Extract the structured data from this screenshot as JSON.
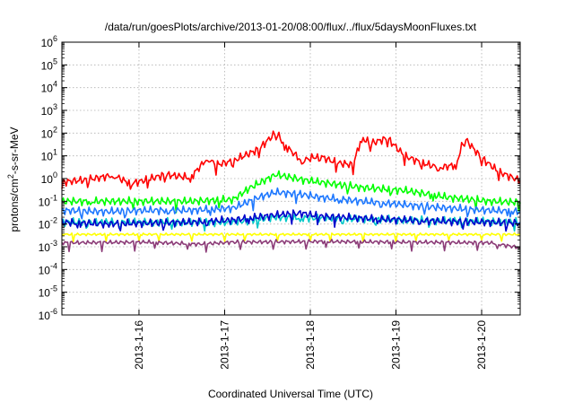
{
  "chart_data": {
    "type": "line",
    "title": "/data/run/goesPlots/archive/2013-01-20/08:00/flux/../flux/5daysMoonFluxes.txt",
    "xlabel": "Coordinated Universal Time (UTC)",
    "ylabel": {
      "prefix": "protons/cm",
      "sup": "2",
      "suffix": "-s-sr-MeV"
    },
    "xlim": [
      0,
      5.35
    ],
    "ylim": [
      1e-06,
      1000000.0
    ],
    "yscale": "log",
    "grid": true,
    "x_ticks": [
      {
        "x": 0.9,
        "label": "2013-1-16"
      },
      {
        "x": 1.9,
        "label": "2013-1-17"
      },
      {
        "x": 2.9,
        "label": "2013-1-18"
      },
      {
        "x": 3.9,
        "label": "2013-1-19"
      },
      {
        "x": 4.9,
        "label": "2013-1-20"
      }
    ],
    "y_ticks": [
      {
        "exp": "6"
      },
      {
        "exp": "5"
      },
      {
        "exp": "4"
      },
      {
        "exp": "3"
      },
      {
        "exp": "2"
      },
      {
        "exp": "1"
      },
      {
        "exp": "0"
      },
      {
        "exp": "-1"
      },
      {
        "exp": "-2"
      },
      {
        "exp": "-3"
      },
      {
        "exp": "-4"
      },
      {
        "exp": "-5"
      },
      {
        "exp": "-6"
      }
    ],
    "y_tick_base": "10",
    "series": [
      {
        "color": "#ff0000",
        "x": [
          0,
          0.3,
          0.6,
          0.8,
          1.0,
          1.2,
          1.5,
          1.7,
          1.8,
          2.0,
          2.3,
          2.5,
          2.6,
          2.8,
          3.0,
          3.2,
          3.4,
          3.5,
          3.6,
          3.8,
          4.0,
          4.2,
          4.4,
          4.6,
          4.7,
          4.9,
          5.1,
          5.35
        ],
        "y": [
          0.7,
          0.9,
          1.4,
          0.6,
          0.9,
          1.5,
          1.1,
          8,
          4,
          6,
          20,
          110,
          30,
          6,
          10,
          5,
          4,
          65,
          35,
          60,
          10,
          5,
          3,
          4,
          60,
          8,
          2,
          0.8
        ]
      },
      {
        "color": "#00ff00",
        "x": [
          0,
          0.5,
          1.0,
          1.5,
          2.0,
          2.2,
          2.5,
          2.8,
          3.0,
          3.5,
          4.0,
          4.5,
          5.0,
          5.35
        ],
        "y": [
          0.1,
          0.1,
          0.1,
          0.1,
          0.12,
          0.4,
          1.5,
          0.9,
          0.7,
          0.4,
          0.3,
          0.15,
          0.1,
          0.09
        ]
      },
      {
        "color": "#00c8c8",
        "x": [
          0,
          1.0,
          2.0,
          2.5,
          3.0,
          4.0,
          5.0,
          5.35
        ],
        "y": [
          0.012,
          0.012,
          0.012,
          0.02,
          0.018,
          0.015,
          0.013,
          0.012
        ]
      },
      {
        "color": "#1e78ff",
        "x": [
          0,
          0.5,
          1.0,
          1.5,
          2.0,
          2.3,
          2.5,
          2.8,
          3.0,
          3.5,
          4.0,
          4.5,
          5.0,
          5.35
        ],
        "y": [
          0.04,
          0.035,
          0.04,
          0.04,
          0.05,
          0.15,
          0.25,
          0.2,
          0.15,
          0.1,
          0.07,
          0.05,
          0.04,
          0.035
        ]
      },
      {
        "color": "#0000cc",
        "x": [
          0,
          0.5,
          1.0,
          1.5,
          2.0,
          2.5,
          2.8,
          3.0,
          3.5,
          4.0,
          4.5,
          5.0,
          5.35
        ],
        "y": [
          0.012,
          0.01,
          0.011,
          0.012,
          0.015,
          0.025,
          0.03,
          0.022,
          0.018,
          0.015,
          0.013,
          0.012,
          0.011
        ]
      },
      {
        "color": "#ffff00",
        "x": [
          0,
          1.0,
          2.0,
          3.0,
          4.0,
          5.0,
          5.35
        ],
        "y": [
          0.0035,
          0.0035,
          0.0035,
          0.0035,
          0.0035,
          0.0035,
          0.0035
        ]
      },
      {
        "color": "#8c3c78",
        "x": [
          0,
          1.0,
          1.6,
          2.0,
          3.0,
          4.0,
          5.0,
          5.35
        ],
        "y": [
          0.0015,
          0.0016,
          0.0013,
          0.0016,
          0.0017,
          0.0016,
          0.0015,
          0.0009
        ]
      }
    ]
  }
}
